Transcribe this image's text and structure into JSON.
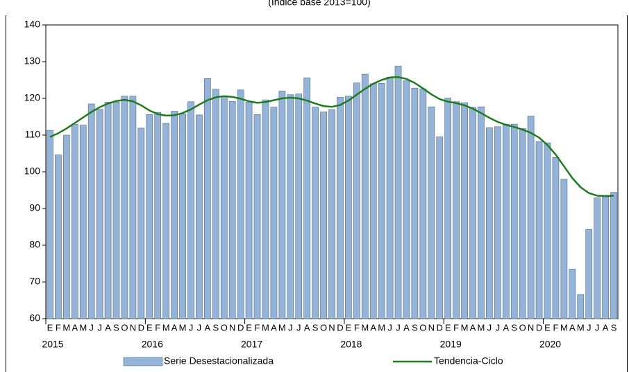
{
  "chart_data": {
    "type": "bar",
    "subtitle": "(Índice base 2013=100)",
    "categories": [
      "E",
      "F",
      "M",
      "A",
      "M",
      "J",
      "J",
      "A",
      "S",
      "O",
      "N",
      "D",
      "E",
      "F",
      "M",
      "A",
      "M",
      "J",
      "J",
      "A",
      "S",
      "O",
      "N",
      "D",
      "E",
      "F",
      "M",
      "A",
      "M",
      "J",
      "J",
      "A",
      "S",
      "O",
      "N",
      "D",
      "E",
      "F",
      "M",
      "A",
      "M",
      "J",
      "J",
      "A",
      "S",
      "O",
      "N",
      "D",
      "E",
      "F",
      "M",
      "A",
      "M",
      "J",
      "J",
      "A",
      "S",
      "O",
      "N",
      "D",
      "E",
      "F",
      "M",
      "A",
      "M",
      "J",
      "J",
      "A",
      "S"
    ],
    "years": [
      "2015",
      "2016",
      "2017",
      "2018",
      "2019",
      "2020"
    ],
    "series": [
      {
        "name": "Serie Desestacionalizada",
        "type": "bar",
        "color": "#95b3d7",
        "values": [
          111.3,
          104.6,
          110,
          113,
          112.7,
          118.5,
          117,
          119,
          119,
          120.6,
          120.6,
          111.9,
          115.6,
          116.2,
          113.2,
          116.5,
          115.8,
          119.1,
          115.5,
          125.4,
          122.5,
          120.6,
          119.2,
          122.3,
          119,
          115.6,
          119.6,
          117.6,
          122,
          121,
          121.2,
          125.6,
          117.6,
          116.3,
          116.9,
          120.3,
          120.6,
          124.2,
          126.6,
          124,
          124.1,
          125.8,
          128.8,
          124.8,
          122.8,
          122.6,
          117.7,
          109.5,
          120.1,
          119.1,
          118.8,
          117.5,
          117.7,
          112,
          112.3,
          113,
          113,
          111.8,
          115.2,
          108.2,
          107.9,
          103.9,
          98,
          73.5,
          66.6,
          84.3,
          92.9,
          93.2,
          94.4
        ]
      },
      {
        "name": "Tendencia-Ciclo",
        "type": "line",
        "color": "#1e7b1e",
        "values": [
          109.5,
          110.5,
          111.8,
          113.3,
          114.8,
          116.3,
          117.6,
          118.6,
          119.3,
          119.6,
          119.2,
          118.1,
          116.7,
          115.7,
          115.3,
          115.4,
          116,
          117,
          118.3,
          119.5,
          120.3,
          120.6,
          120.4,
          119.9,
          119.2,
          118.8,
          119,
          119.5,
          120,
          120.2,
          120,
          119.4,
          118.6,
          117.9,
          117.7,
          118.2,
          119.4,
          121,
          122.6,
          124,
          125,
          125.7,
          125.8,
          125.3,
          124.2,
          122.7,
          121.1,
          119.8,
          119.1,
          118.7,
          118.1,
          117.2,
          116,
          114.7,
          113.6,
          112.8,
          112.2,
          111.5,
          110.6,
          109.3,
          107.3,
          104.7,
          101.5,
          98.3,
          95.8,
          94.2,
          93.5,
          93.4,
          93.5
        ]
      }
    ],
    "ylim": [
      60,
      140
    ],
    "yticks": [
      60,
      70,
      80,
      90,
      100,
      110,
      120,
      130,
      140
    ],
    "grid": false
  }
}
